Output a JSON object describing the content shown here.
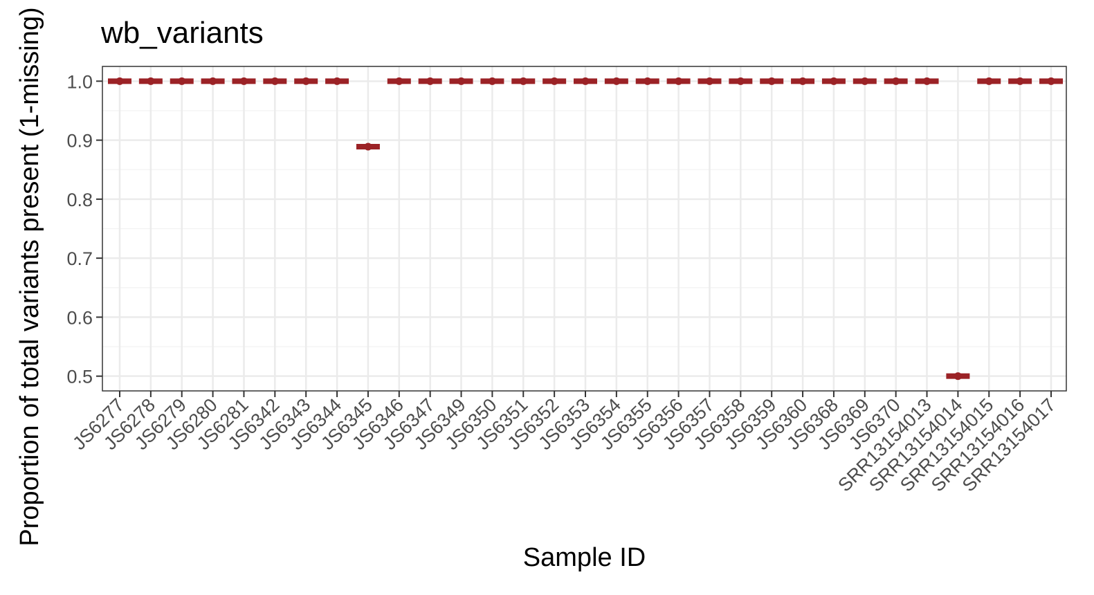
{
  "chart_data": {
    "type": "scatter",
    "title": "wb_variants",
    "xlabel": "Sample ID",
    "ylabel": "Proportion of total variants present (1-missing)",
    "ylim": [
      0.475,
      1.025
    ],
    "yticks": [
      0.5,
      0.6,
      0.7,
      0.8,
      0.9,
      1.0
    ],
    "ytick_labels": [
      "0.5",
      "0.6",
      "0.7",
      "0.8",
      "0.9",
      "1.0"
    ],
    "grid": true,
    "theme": "bw",
    "marker_color": "#9b2226",
    "categories": [
      "JS6277",
      "JS6278",
      "JS6279",
      "JS6280",
      "JS6281",
      "JS6342",
      "JS6343",
      "JS6344",
      "JS6345",
      "JS6346",
      "JS6347",
      "JS6349",
      "JS6350",
      "JS6351",
      "JS6352",
      "JS6353",
      "JS6354",
      "JS6355",
      "JS6356",
      "JS6357",
      "JS6358",
      "JS6359",
      "JS6360",
      "JS6368",
      "JS6369",
      "JS6370",
      "SRR13154013",
      "SRR13154014",
      "SRR13154015",
      "SRR13154016",
      "SRR13154017"
    ],
    "values": [
      1.0,
      1.0,
      1.0,
      1.0,
      1.0,
      1.0,
      1.0,
      1.0,
      0.889,
      1.0,
      1.0,
      1.0,
      1.0,
      1.0,
      1.0,
      1.0,
      1.0,
      1.0,
      1.0,
      1.0,
      1.0,
      1.0,
      1.0,
      1.0,
      1.0,
      1.0,
      1.0,
      0.5,
      1.0,
      1.0,
      1.0
    ]
  }
}
